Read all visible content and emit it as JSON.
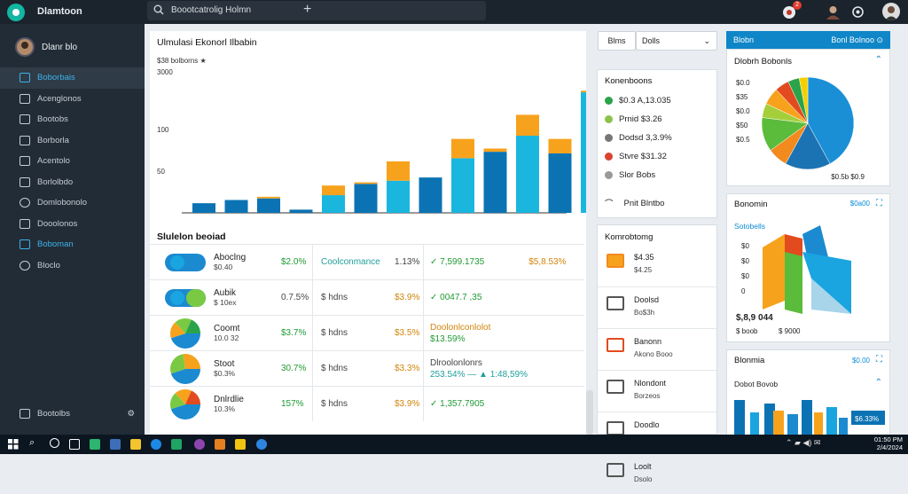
{
  "app": {
    "title": "Dlamtoon"
  },
  "search": {
    "value": "Boootcatrolig Holmn"
  },
  "user": {
    "name": "Dlanr blo"
  },
  "notification_count": "2",
  "sidebar": {
    "items": [
      {
        "label": "Boborbais",
        "active": true
      },
      {
        "label": "Acenglonos"
      },
      {
        "label": "Bootobs"
      },
      {
        "label": "Borborla"
      },
      {
        "label": "Acentolo"
      },
      {
        "label": "Borlolbdo"
      },
      {
        "label": "Domlobonolo"
      },
      {
        "label": "Dooolonos"
      },
      {
        "label": "Boboman"
      },
      {
        "label": "Bloclo"
      }
    ],
    "footer": "Bootolbs"
  },
  "main_chart": {
    "title": "Ulmulasi Ekonorl Ilbabin",
    "subtitle": "$38 bolborns ★",
    "ytick_top": "3000"
  },
  "chart_data": {
    "type": "bar",
    "title": "Ulmulasi Ekonorl Ilbabin",
    "yticks": [
      "3000",
      "100",
      "50"
    ],
    "series": [
      {
        "values": [
          6,
          8,
          9,
          2,
          11,
          18,
          20,
          22,
          34,
          38,
          48,
          37,
          75
        ]
      },
      {
        "values": [
          0,
          0,
          1,
          0,
          6,
          1,
          12,
          0,
          12,
          2,
          13,
          9,
          1
        ]
      }
    ],
    "colors": [
      "#0b73b3",
      "#1ab6dd",
      "#f7a21c"
    ]
  },
  "table": {
    "title": "Slulelon beoiad",
    "rows": [
      {
        "name": "Aboclng",
        "sub": "$0.40",
        "pct": "$2.0%",
        "col3": "Coolconmance",
        "col3b": "1.13%",
        "col4": "✓ 7,599.1735",
        "col4b": "$5,8.53%"
      },
      {
        "name": "Aubik",
        "sub": "$ 10ex",
        "pct": "0.7.5%",
        "col3": "$ hdns",
        "col3b": "$3.9%",
        "col4": "✓ 0047.7 ,35",
        "col4b": ""
      },
      {
        "name": "Coomt",
        "sub": "10.0 32",
        "pct": "$3.7%",
        "col3": "$ hdns",
        "col3b": "$3.5%",
        "col4": "Doolonlconlolot",
        "col4b": "$13.59%"
      },
      {
        "name": "Stoot",
        "sub": "$0.3%",
        "pct": "30.7%",
        "col3": "$ hdns",
        "col3b": "$3.3%",
        "col4": "Dlroolonlonrs",
        "col4b": "253.54% — ▲ 1:48,59%"
      },
      {
        "name": "Dnlrdlie",
        "sub": "10.3%",
        "pct": "157%",
        "col3": "$ hdns",
        "col3b": "$3.9%",
        "col4": "✓ 1,357.7905",
        "col4b": ""
      }
    ]
  },
  "filter": {
    "btn": "Blms",
    "select": "Dolls"
  },
  "summary_card": {
    "title": "Konenboons",
    "rows": [
      {
        "label": "$0.3 A,13.035",
        "color": "#2aa34a"
      },
      {
        "label": "Prnid $3.26",
        "color": "#8bc34a"
      },
      {
        "label": "Dodsd 3,3.9%",
        "color": "#777"
      },
      {
        "label": "Stvre $31.32",
        "color": "#d9432f"
      },
      {
        "label": "Slor Bobs",
        "color": "#999"
      }
    ],
    "footer": "Pnit Blntbo"
  },
  "list_card": {
    "title": "Komrobtomg",
    "rows": [
      {
        "title": "$4.35",
        "sub": "$4.25"
      },
      {
        "title": "Doolsd",
        "sub": "Bo$3h"
      },
      {
        "title": "Banonn",
        "sub": "Akono Booo"
      },
      {
        "title": "Nlondont",
        "sub": "Borzeos"
      },
      {
        "title": "Doodlo",
        "sub": "Dolso"
      },
      {
        "title": "Loolt",
        "sub": "Dsolo"
      }
    ]
  },
  "right_header": {
    "title": "Blobn",
    "link": "Bonl Bolnoo ⊙"
  },
  "pie_card": {
    "title": "Dlobrh Bobonls",
    "ticks": [
      "$0.0",
      "$35",
      "$0.0",
      "$50",
      "$0.5"
    ],
    "legend": "$0.5b $0.9"
  },
  "cube_card": {
    "title": "Bonomin",
    "link": "$0a00",
    "sub": "Sotobells",
    "ticks": [
      "$0",
      "$0",
      "$0",
      "0"
    ],
    "value": "$,8,9 044",
    "legend1": "$ boob",
    "legend2": "$ 9000"
  },
  "bars_card": {
    "title": "Blonmia",
    "link": "$0.00",
    "sub": "Dobot Bovob",
    "legend": "$6.33%",
    "legend2": "$0.00%"
  },
  "taskbar": {
    "time": "01:50 PM",
    "date": "2/4/2024"
  }
}
